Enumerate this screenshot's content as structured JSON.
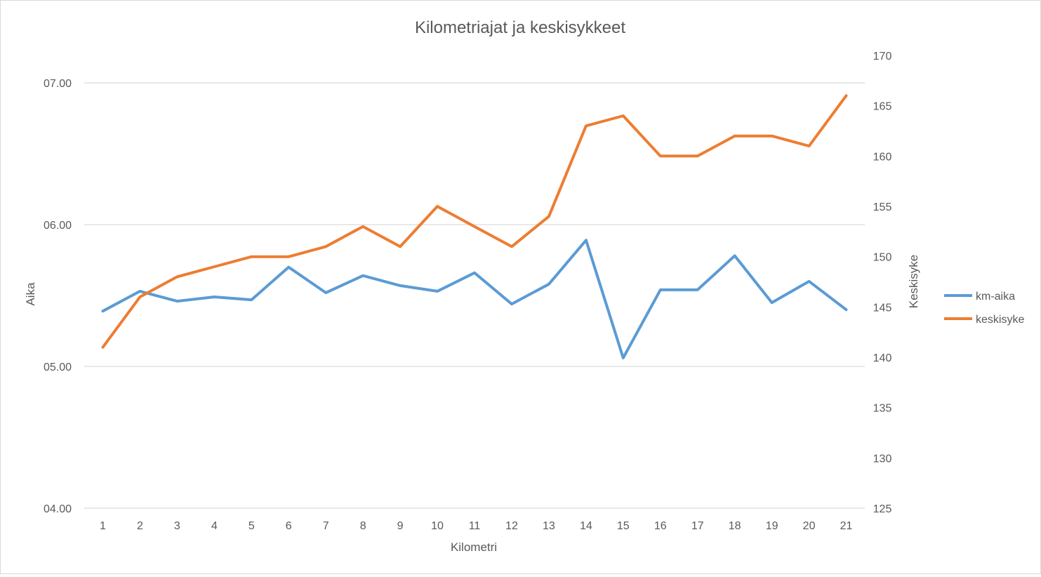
{
  "chart_data": {
    "type": "line",
    "title": "Kilometriajat ja keskisykkeet",
    "xlabel": "Kilometri",
    "ylabel_left": "Aika",
    "ylabel_right": "Keskisyke",
    "categories": [
      "1",
      "2",
      "3",
      "4",
      "5",
      "6",
      "7",
      "8",
      "9",
      "10",
      "11",
      "12",
      "13",
      "14",
      "15",
      "16",
      "17",
      "18",
      "19",
      "20",
      "21"
    ],
    "y_left": {
      "min": 4.0,
      "max": 7.0,
      "tick_values": [
        4.0,
        5.0,
        6.0,
        7.0
      ],
      "tick_labels": [
        "04.00",
        "05.00",
        "06.00",
        "07.00"
      ]
    },
    "y_right": {
      "min": 125,
      "max": 170,
      "tick_values": [
        125,
        130,
        135,
        140,
        145,
        150,
        155,
        160,
        165,
        170
      ],
      "tick_labels": [
        "125",
        "130",
        "135",
        "140",
        "145",
        "150",
        "155",
        "160",
        "165",
        "170"
      ]
    },
    "grid": true,
    "legend_position": "right",
    "series": [
      {
        "name": "km-aika",
        "axis": "left",
        "color": "#5b9bd5",
        "values": [
          5.39,
          5.53,
          5.46,
          5.49,
          5.47,
          5.7,
          5.52,
          5.64,
          5.57,
          5.53,
          5.66,
          5.44,
          5.58,
          5.89,
          5.06,
          5.54,
          5.54,
          5.78,
          5.45,
          5.6,
          5.4
        ]
      },
      {
        "name": "keskisyke",
        "axis": "right",
        "color": "#ed7d31",
        "values": [
          141,
          146,
          148,
          149,
          150,
          150,
          151,
          153,
          151,
          155,
          153,
          151,
          154,
          163,
          164,
          160,
          160,
          162,
          162,
          161,
          166
        ]
      }
    ]
  }
}
